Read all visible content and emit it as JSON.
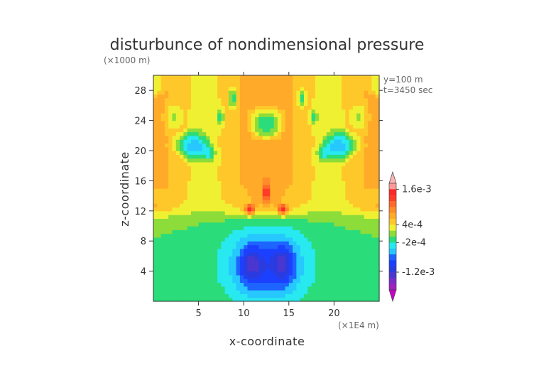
{
  "chart_data": {
    "type": "heatmap",
    "title": "disturbunce of nondimensional pressure",
    "unit_note": "(×1000 m)",
    "xlabel": "x-coordinate",
    "ylabel": "z-coordinate",
    "x_unit_note": "(×1E4 m)",
    "annotations": [
      "y=100 m",
      "t=3450 sec"
    ],
    "xlim": [
      0,
      25
    ],
    "ylim": [
      0,
      30
    ],
    "xticks": [
      5,
      10,
      15,
      20
    ],
    "yticks": [
      4,
      8,
      12,
      16,
      20,
      24,
      28
    ],
    "grid": false,
    "colorbar": {
      "position": "right",
      "labels": [
        "1.6e-3",
        "4e-4",
        "-2e-4",
        "-1.2e-3"
      ],
      "label_values": [
        0.0016,
        0.0004,
        -0.0002,
        -0.0012
      ],
      "levels": [
        -0.0018,
        -0.0016,
        -0.0014,
        -0.0012,
        -0.001,
        -0.0008,
        -0.0006,
        -0.0004,
        -0.0002,
        0.0,
        0.0002,
        0.0004,
        0.0006,
        0.0008,
        0.001,
        0.0012,
        0.0014,
        0.0016,
        0.0018
      ],
      "colors": [
        "#c800c8",
        "#a020c0",
        "#7a2cc8",
        "#4b36d0",
        "#2a3ce0",
        "#1c40ff",
        "#1e64ff",
        "#26c8ff",
        "#28e8f0",
        "#2adc7a",
        "#8cdc3a",
        "#f0f032",
        "#ffc82a",
        "#ffaa28",
        "#ff8c2a",
        "#ff6a28",
        "#ff3c28",
        "#ff2828",
        "#ff9a9a",
        "#ffb4b4"
      ]
    },
    "fields": {
      "x_range": [
        0,
        25
      ],
      "z_range": [
        0,
        30
      ],
      "dominant_lower": "negative (~ -2e-4 to -1.6e-3) beneath x 7-18",
      "dominant_upper": "positive (~ 4e-4 to 1e-3)"
    }
  }
}
